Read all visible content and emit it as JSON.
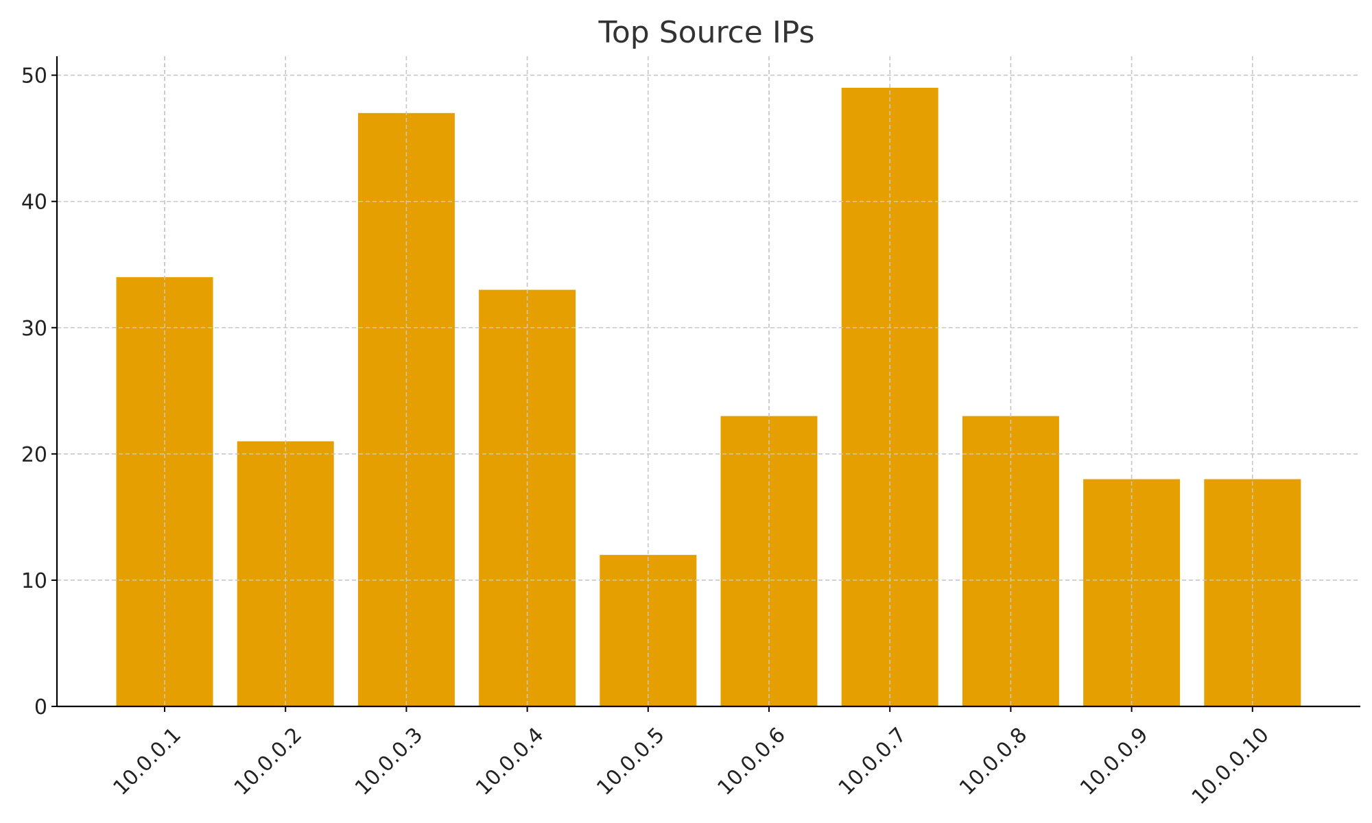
{
  "chart_data": {
    "type": "bar",
    "title": "Top Source IPs",
    "xlabel": "",
    "ylabel": "",
    "categories": [
      "10.0.0.1",
      "10.0.0.2",
      "10.0.0.3",
      "10.0.0.4",
      "10.0.0.5",
      "10.0.0.6",
      "10.0.0.7",
      "10.0.0.8",
      "10.0.0.9",
      "10.0.0.10"
    ],
    "values": [
      34,
      21,
      47,
      33,
      12,
      23,
      49,
      23,
      18,
      18
    ],
    "ylim": [
      0,
      51.5
    ],
    "yticks": [
      0,
      10,
      20,
      30,
      40,
      50
    ],
    "grid": true,
    "legend": "none",
    "bar_color": "#E69F00",
    "x_tick_rotation": -45
  }
}
